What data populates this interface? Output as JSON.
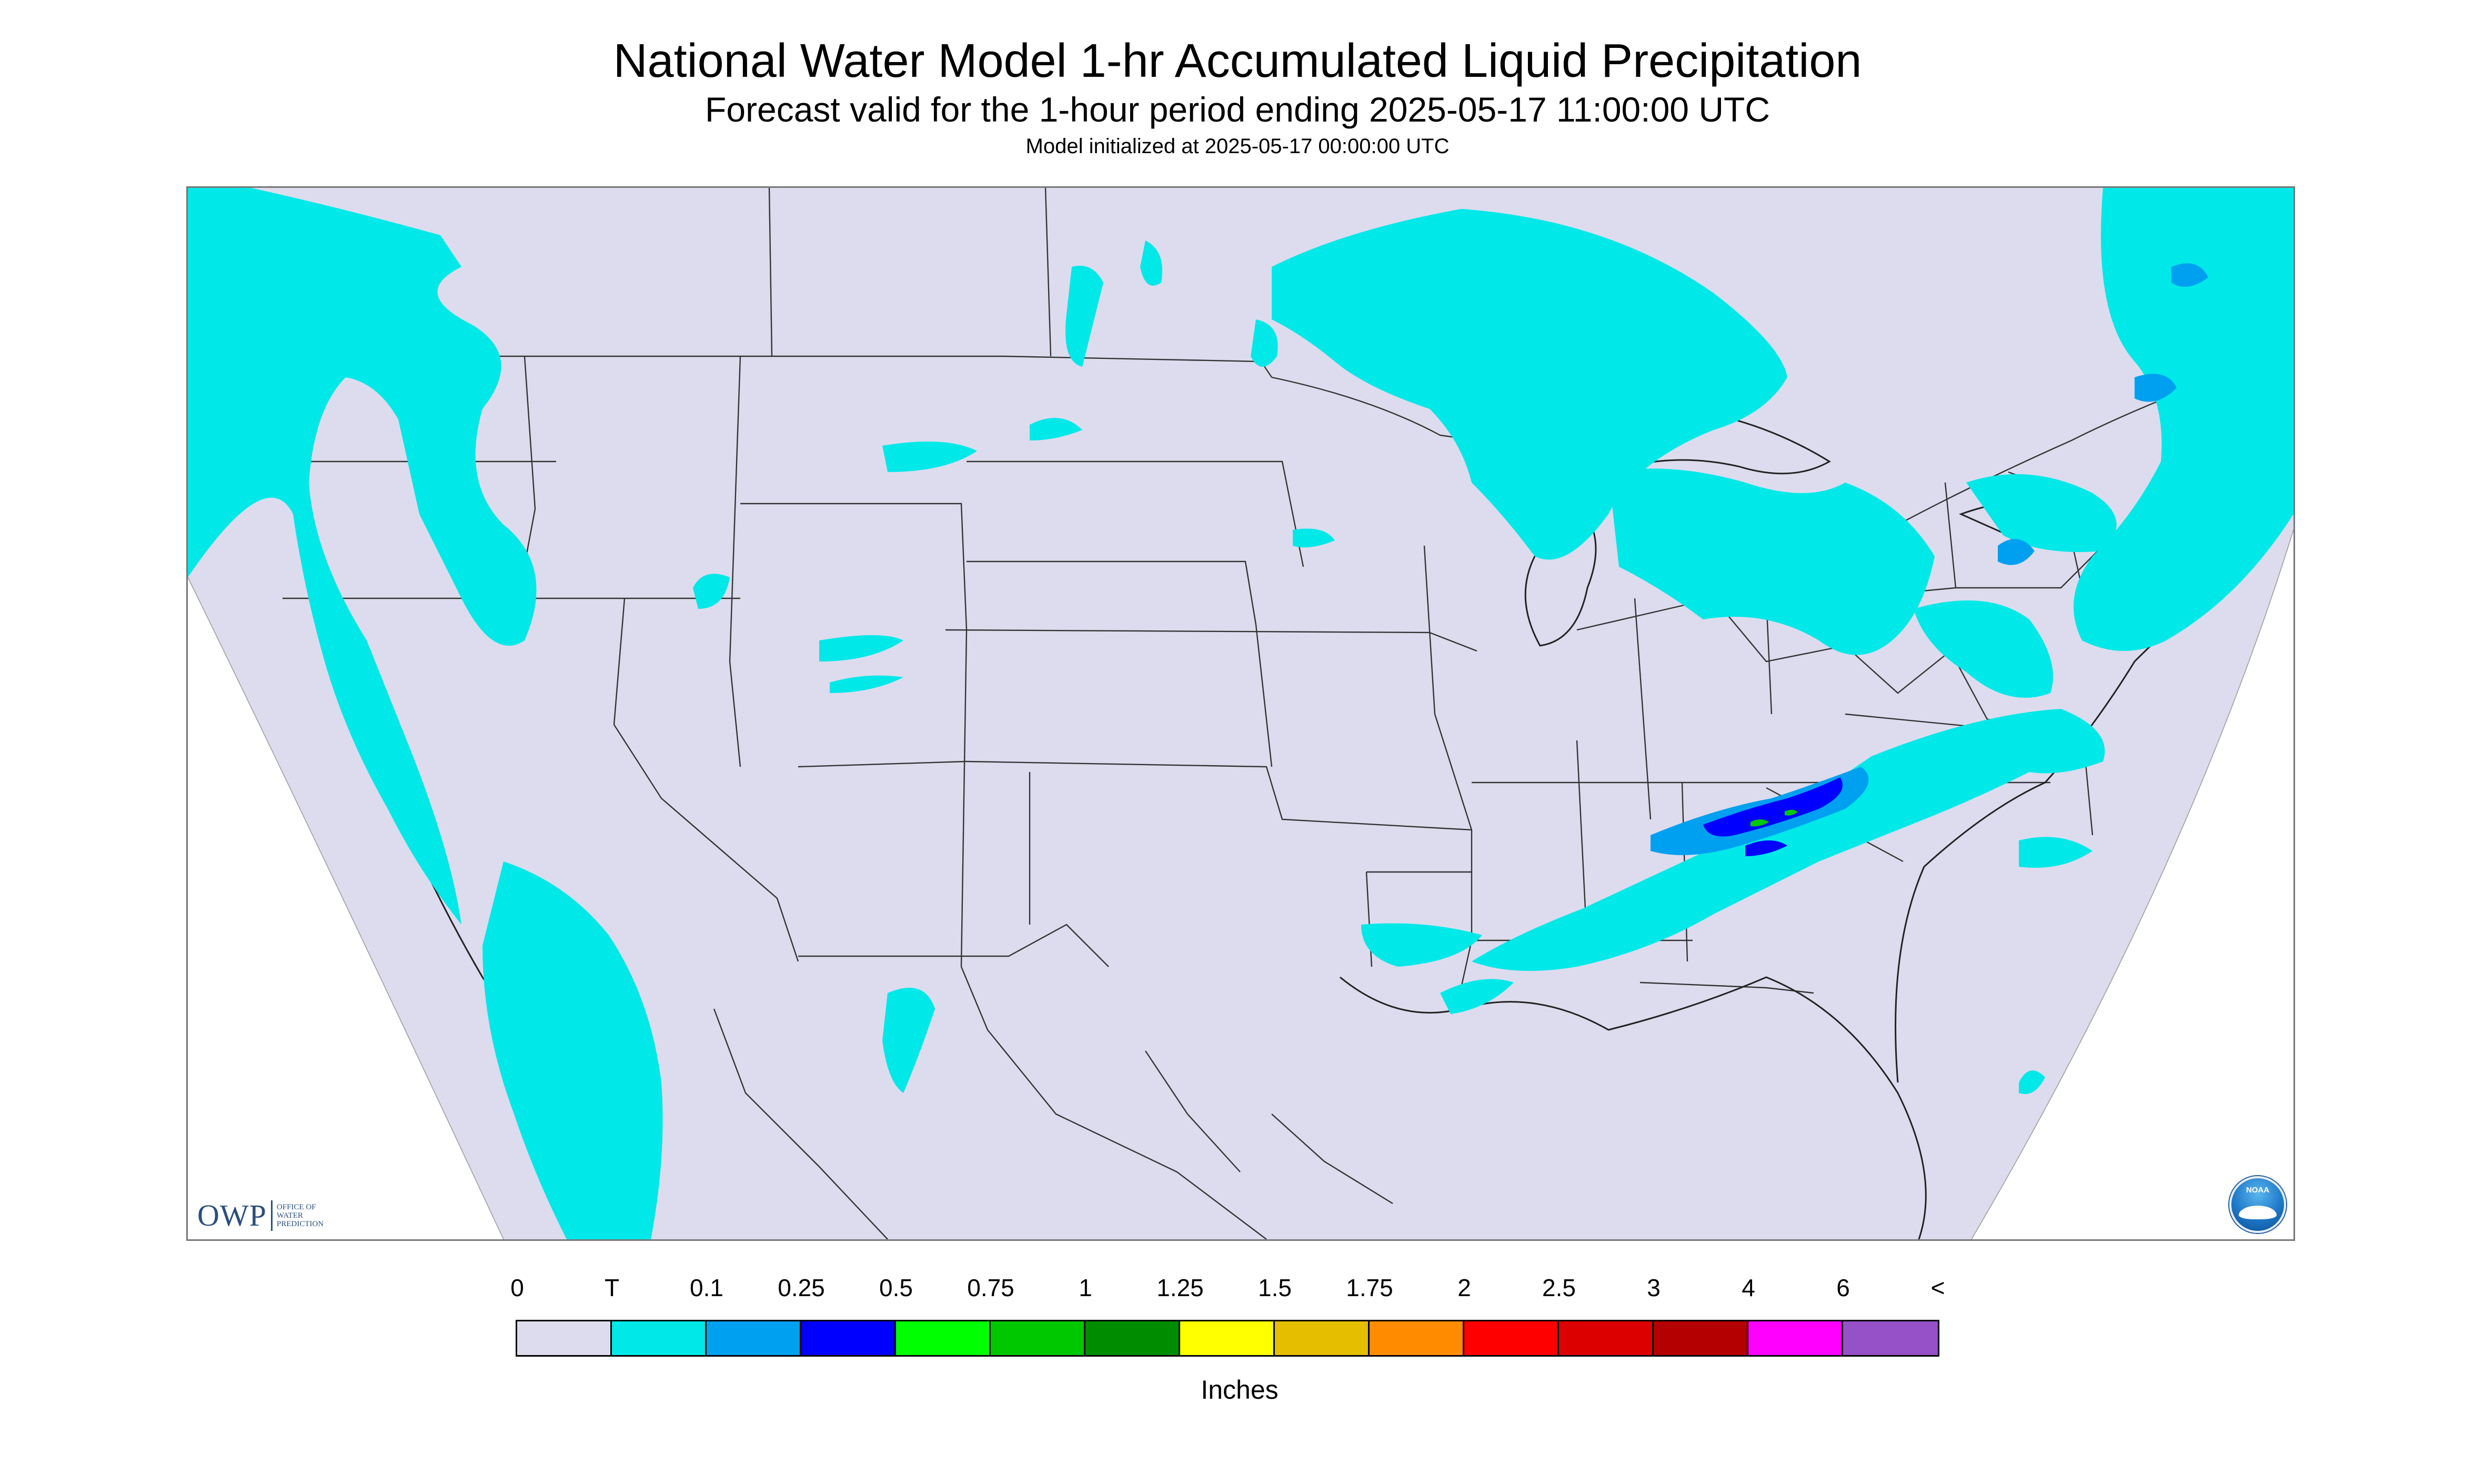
{
  "title": "National Water Model 1-hr Accumulated Liquid Precipitation",
  "subtitle": "Forecast valid for the 1-hour period ending 2025-05-17 11:00:00 UTC",
  "init_line": "Model initialized at 2025-05-17 00:00:00 UTC",
  "map": {
    "background_color": "#dcdcee",
    "outside_color": "#ffffff",
    "precip_colors": {
      "trace": "#00e8e8",
      "light": "#00a0f0",
      "moderate": "#0000ff",
      "heavy": "#00c800"
    }
  },
  "logos": {
    "owp_letters": "OWP",
    "owp_sub_1": "OFFICE OF",
    "owp_sub_2": "WATER",
    "owp_sub_3": "PREDICTION",
    "noaa_label": "NOAA",
    "noaa_icon": "noaa-logo-icon"
  },
  "legend": {
    "unit": "Inches",
    "tick_labels": [
      "0",
      "T",
      "0.1",
      "0.25",
      "0.5",
      "0.75",
      "1",
      "1.25",
      "1.5",
      "1.75",
      "2",
      "2.5",
      "3",
      "4",
      "6",
      "<"
    ],
    "colors": [
      "#dcdcee",
      "#00e8e8",
      "#00a0f0",
      "#0000ff",
      "#00ff00",
      "#00c800",
      "#008c00",
      "#ffff00",
      "#e6be00",
      "#ff8c00",
      "#ff0000",
      "#dc0000",
      "#b40000",
      "#ff00ff",
      "#9650c8"
    ]
  }
}
